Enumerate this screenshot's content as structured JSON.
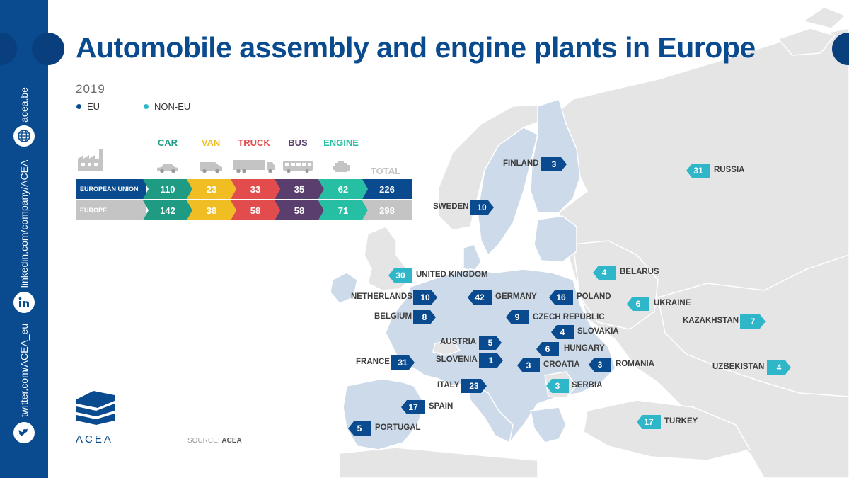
{
  "title": "Automobile assembly and engine plants in Europe",
  "year": "2019",
  "legend": {
    "eu": "EU",
    "non_eu": "NON-EU"
  },
  "colors": {
    "eu": "#0a4a8f",
    "non_eu": "#2fb6c8",
    "car": "#1f9a83",
    "van": "#f0be22",
    "truck": "#e24c4c",
    "bus": "#5a3f6e",
    "engine": "#26bfa3",
    "total": "#c4c4c4"
  },
  "table": {
    "columns": [
      "CAR",
      "VAN",
      "TRUCK",
      "BUS",
      "ENGINE"
    ],
    "total_label": "TOTAL",
    "rows": [
      {
        "label": "EUROPEAN UNION",
        "values": [
          "110",
          "23",
          "33",
          "35",
          "62"
        ],
        "total": "226"
      },
      {
        "label": "EUROPE",
        "values": [
          "142",
          "38",
          "58",
          "58",
          "71"
        ],
        "total": "298"
      }
    ]
  },
  "countries": [
    {
      "name": "FINLAND",
      "value": "3",
      "group": "EU"
    },
    {
      "name": "SWEDEN",
      "value": "10",
      "group": "EU"
    },
    {
      "name": "RUSSIA",
      "value": "31",
      "group": "NON-EU"
    },
    {
      "name": "UNITED KINGDOM",
      "value": "30",
      "group": "NON-EU"
    },
    {
      "name": "BELARUS",
      "value": "4",
      "group": "NON-EU"
    },
    {
      "name": "NETHERLANDS",
      "value": "10",
      "group": "EU"
    },
    {
      "name": "GERMANY",
      "value": "42",
      "group": "EU"
    },
    {
      "name": "POLAND",
      "value": "16",
      "group": "EU"
    },
    {
      "name": "UKRAINE",
      "value": "6",
      "group": "NON-EU"
    },
    {
      "name": "BELGIUM",
      "value": "8",
      "group": "EU"
    },
    {
      "name": "CZECH REPUBLIC",
      "value": "9",
      "group": "EU"
    },
    {
      "name": "KAZAKHSTAN",
      "value": "7",
      "group": "NON-EU"
    },
    {
      "name": "SLOVAKIA",
      "value": "4",
      "group": "EU"
    },
    {
      "name": "AUSTRIA",
      "value": "5",
      "group": "EU"
    },
    {
      "name": "HUNGARY",
      "value": "6",
      "group": "EU"
    },
    {
      "name": "FRANCE",
      "value": "31",
      "group": "EU"
    },
    {
      "name": "SLOVENIA",
      "value": "1",
      "group": "EU"
    },
    {
      "name": "CROATIA",
      "value": "3",
      "group": "EU"
    },
    {
      "name": "ROMANIA",
      "value": "3",
      "group": "EU"
    },
    {
      "name": "UZBEKISTAN",
      "value": "4",
      "group": "NON-EU"
    },
    {
      "name": "ITALY",
      "value": "23",
      "group": "EU"
    },
    {
      "name": "SERBIA",
      "value": "3",
      "group": "NON-EU"
    },
    {
      "name": "SPAIN",
      "value": "17",
      "group": "EU"
    },
    {
      "name": "TURKEY",
      "value": "17",
      "group": "NON-EU"
    },
    {
      "name": "PORTUGAL",
      "value": "5",
      "group": "EU"
    }
  ],
  "sidebar": {
    "website": "acea.be",
    "linkedin": "linkedin.com/company/ACEA",
    "twitter": "twitter.com/ACEA_eu",
    "icons": [
      "globe-icon",
      "linkedin-icon",
      "twitter-icon"
    ]
  },
  "brand": "ACEA",
  "source": {
    "label": "SOURCE:",
    "value": "ACEA"
  }
}
